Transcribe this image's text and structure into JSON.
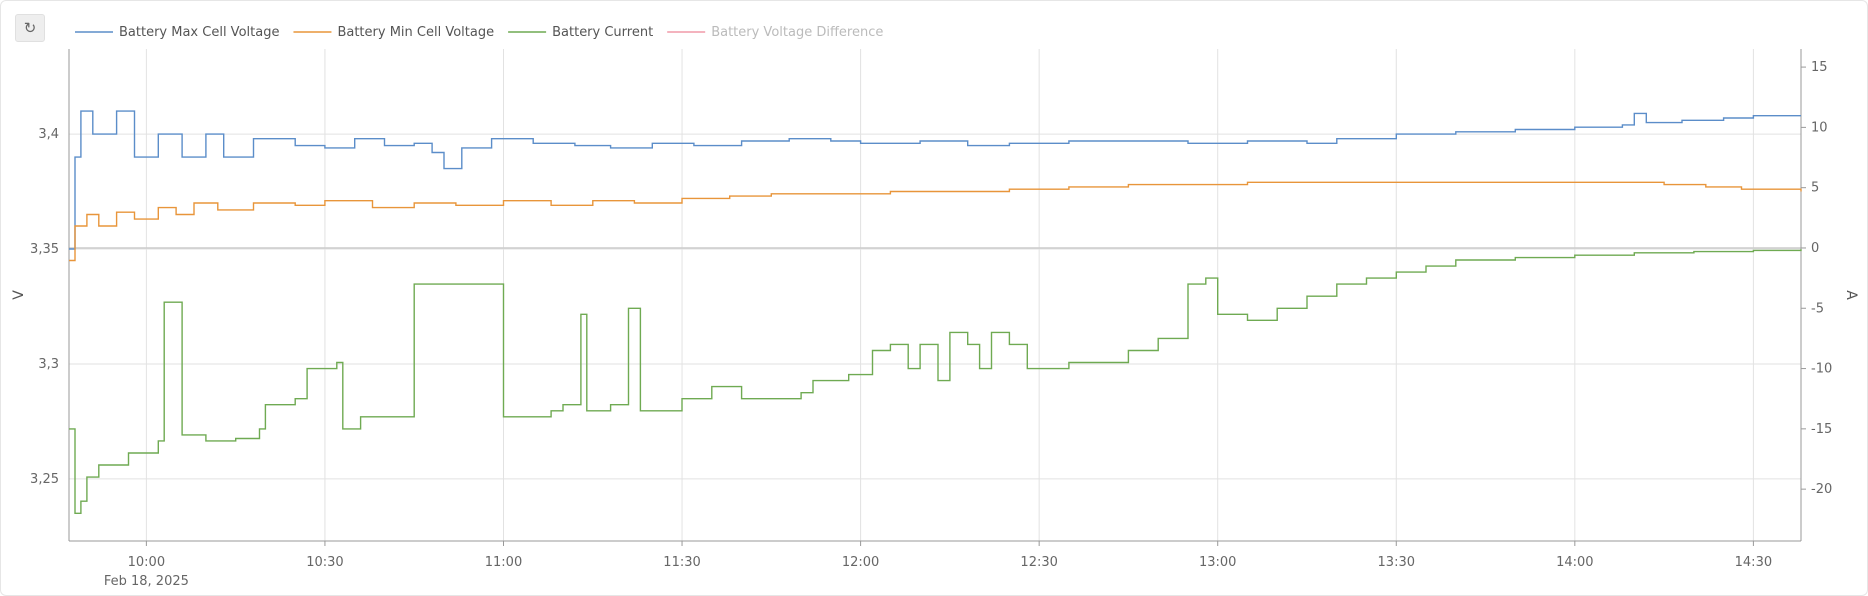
{
  "reset_icon": "↻",
  "chart_data": {
    "type": "line",
    "step": true,
    "title": "",
    "grid": true,
    "legend_position": "top-left",
    "x_axis": {
      "ticks": [
        "10:00",
        "10:30",
        "11:00",
        "11:30",
        "12:00",
        "12:30",
        "13:00",
        "13:30",
        "14:00",
        "14:30"
      ],
      "date_label": "Feb 18, 2025",
      "range": [
        "09:47",
        "14:38"
      ]
    },
    "y_left": {
      "label": "V",
      "ticks": [
        "3,25",
        "3,3",
        "3,35",
        "3,4"
      ],
      "range": [
        3.223,
        3.437
      ]
    },
    "y_right": {
      "label": "A",
      "ticks": [
        "-20",
        "-15",
        "-10",
        "-5",
        "0",
        "5",
        "10",
        "15"
      ],
      "range": [
        -24.3,
        16.5
      ]
    },
    "series": [
      {
        "name": "Battery Max Cell Voltage",
        "axis": "left",
        "color": "#5b8dc9",
        "visible": true,
        "points": [
          [
            "09:47",
            3.35
          ],
          [
            "09:48",
            3.39
          ],
          [
            "09:49",
            3.41
          ],
          [
            "09:51",
            3.4
          ],
          [
            "09:55",
            3.41
          ],
          [
            "09:58",
            3.39
          ],
          [
            "10:02",
            3.4
          ],
          [
            "10:06",
            3.39
          ],
          [
            "10:10",
            3.4
          ],
          [
            "10:13",
            3.39
          ],
          [
            "10:18",
            3.398
          ],
          [
            "10:25",
            3.395
          ],
          [
            "10:30",
            3.394
          ],
          [
            "10:35",
            3.398
          ],
          [
            "10:40",
            3.395
          ],
          [
            "10:45",
            3.396
          ],
          [
            "10:48",
            3.392
          ],
          [
            "10:50",
            3.385
          ],
          [
            "10:53",
            3.394
          ],
          [
            "10:58",
            3.398
          ],
          [
            "11:05",
            3.396
          ],
          [
            "11:12",
            3.395
          ],
          [
            "11:18",
            3.394
          ],
          [
            "11:25",
            3.396
          ],
          [
            "11:32",
            3.395
          ],
          [
            "11:40",
            3.397
          ],
          [
            "11:48",
            3.398
          ],
          [
            "11:55",
            3.397
          ],
          [
            "12:00",
            3.396
          ],
          [
            "12:10",
            3.397
          ],
          [
            "12:18",
            3.395
          ],
          [
            "12:25",
            3.396
          ],
          [
            "12:35",
            3.397
          ],
          [
            "12:45",
            3.397
          ],
          [
            "12:55",
            3.396
          ],
          [
            "13:05",
            3.397
          ],
          [
            "13:15",
            3.396
          ],
          [
            "13:20",
            3.398
          ],
          [
            "13:30",
            3.4
          ],
          [
            "13:40",
            3.401
          ],
          [
            "13:50",
            3.402
          ],
          [
            "14:00",
            3.403
          ],
          [
            "14:08",
            3.404
          ],
          [
            "14:10",
            3.409
          ],
          [
            "14:12",
            3.405
          ],
          [
            "14:18",
            3.406
          ],
          [
            "14:25",
            3.407
          ],
          [
            "14:30",
            3.408
          ],
          [
            "14:38",
            3.408
          ]
        ]
      },
      {
        "name": "Battery Min Cell Voltage",
        "axis": "left",
        "color": "#e8953a",
        "visible": true,
        "points": [
          [
            "09:47",
            3.345
          ],
          [
            "09:48",
            3.36
          ],
          [
            "09:50",
            3.365
          ],
          [
            "09:52",
            3.36
          ],
          [
            "09:55",
            3.366
          ],
          [
            "09:58",
            3.363
          ],
          [
            "10:02",
            3.368
          ],
          [
            "10:05",
            3.365
          ],
          [
            "10:08",
            3.37
          ],
          [
            "10:12",
            3.367
          ],
          [
            "10:18",
            3.37
          ],
          [
            "10:25",
            3.369
          ],
          [
            "10:30",
            3.371
          ],
          [
            "10:38",
            3.368
          ],
          [
            "10:45",
            3.37
          ],
          [
            "10:52",
            3.369
          ],
          [
            "11:00",
            3.371
          ],
          [
            "11:08",
            3.369
          ],
          [
            "11:15",
            3.371
          ],
          [
            "11:22",
            3.37
          ],
          [
            "11:30",
            3.372
          ],
          [
            "11:38",
            3.373
          ],
          [
            "11:45",
            3.374
          ],
          [
            "11:55",
            3.374
          ],
          [
            "12:05",
            3.375
          ],
          [
            "12:15",
            3.375
          ],
          [
            "12:25",
            3.376
          ],
          [
            "12:35",
            3.377
          ],
          [
            "12:45",
            3.378
          ],
          [
            "12:55",
            3.378
          ],
          [
            "13:05",
            3.379
          ],
          [
            "13:15",
            3.379
          ],
          [
            "13:25",
            3.379
          ],
          [
            "13:35",
            3.379
          ],
          [
            "13:45",
            3.379
          ],
          [
            "13:55",
            3.379
          ],
          [
            "14:05",
            3.379
          ],
          [
            "14:15",
            3.378
          ],
          [
            "14:22",
            3.377
          ],
          [
            "14:28",
            3.376
          ],
          [
            "14:38",
            3.375
          ]
        ]
      },
      {
        "name": "Battery Current",
        "axis": "right",
        "color": "#6faa52",
        "visible": true,
        "points": [
          [
            "09:47",
            -15
          ],
          [
            "09:48",
            -22
          ],
          [
            "09:49",
            -21
          ],
          [
            "09:50",
            -19
          ],
          [
            "09:52",
            -18
          ],
          [
            "09:57",
            -17
          ],
          [
            "10:02",
            -16
          ],
          [
            "10:03",
            -4.5
          ],
          [
            "10:06",
            -4.5
          ],
          [
            "10:06",
            -15.5
          ],
          [
            "10:10",
            -16
          ],
          [
            "10:15",
            -15.8
          ],
          [
            "10:19",
            -15
          ],
          [
            "10:20",
            -13
          ],
          [
            "10:25",
            -12.5
          ],
          [
            "10:27",
            -10
          ],
          [
            "10:32",
            -9.5
          ],
          [
            "10:33",
            -15
          ],
          [
            "10:36",
            -14
          ],
          [
            "10:44",
            -14
          ],
          [
            "10:45",
            -3
          ],
          [
            "10:55",
            -3
          ],
          [
            "11:00",
            -3
          ],
          [
            "11:00",
            -14
          ],
          [
            "11:08",
            -13.5
          ],
          [
            "11:10",
            -13
          ],
          [
            "11:12",
            -13
          ],
          [
            "11:13",
            -5.5
          ],
          [
            "11:14",
            -5.5
          ],
          [
            "11:14",
            -13.5
          ],
          [
            "11:18",
            -13
          ],
          [
            "11:21",
            -13
          ],
          [
            "11:21",
            -5
          ],
          [
            "11:23",
            -5
          ],
          [
            "11:23",
            -13.5
          ],
          [
            "11:30",
            -12.5
          ],
          [
            "11:35",
            -11.5
          ],
          [
            "11:40",
            -12.5
          ],
          [
            "11:50",
            -12
          ],
          [
            "11:52",
            -11
          ],
          [
            "11:58",
            -10.5
          ],
          [
            "12:02",
            -8.5
          ],
          [
            "12:05",
            -8
          ],
          [
            "12:08",
            -10
          ],
          [
            "12:10",
            -8
          ],
          [
            "12:13",
            -11
          ],
          [
            "12:15",
            -7
          ],
          [
            "12:18",
            -8
          ],
          [
            "12:20",
            -10
          ],
          [
            "12:22",
            -7
          ],
          [
            "12:25",
            -8
          ],
          [
            "12:28",
            -10
          ],
          [
            "12:35",
            -9.5
          ],
          [
            "12:45",
            -8.5
          ],
          [
            "12:50",
            -7.5
          ],
          [
            "12:55",
            -3
          ],
          [
            "12:58",
            -2.5
          ],
          [
            "13:00",
            -5.5
          ],
          [
            "13:05",
            -6
          ],
          [
            "13:10",
            -5
          ],
          [
            "13:15",
            -4
          ],
          [
            "13:20",
            -3
          ],
          [
            "13:25",
            -2.5
          ],
          [
            "13:30",
            -2
          ],
          [
            "13:35",
            -1.5
          ],
          [
            "13:40",
            -1
          ],
          [
            "13:50",
            -0.8
          ],
          [
            "14:00",
            -0.6
          ],
          [
            "14:10",
            -0.4
          ],
          [
            "14:20",
            -0.3
          ],
          [
            "14:30",
            -0.2
          ],
          [
            "14:38",
            -0.1
          ]
        ]
      },
      {
        "name": "Battery Voltage Difference",
        "axis": "left",
        "color": "#f19aa8",
        "visible": false,
        "points": []
      }
    ]
  }
}
